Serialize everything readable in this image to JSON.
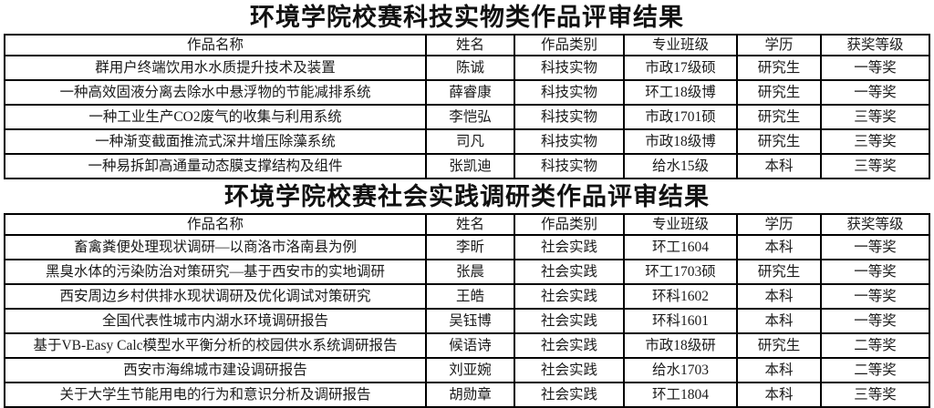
{
  "page": {
    "background_color": "#ffffff",
    "border_color": "#000000",
    "text_color": "#1a1a1a"
  },
  "tables": [
    {
      "title": "环境学院校赛科技实物类作品评审结果",
      "headers": [
        "作品名称",
        "姓名",
        "作品类别",
        "专业班级",
        "学历",
        "获奖等级"
      ],
      "rows": [
        [
          "群用户终端饮用水水质提升技术及装置",
          "陈诚",
          "科技实物",
          "市政17级硕",
          "研究生",
          "一等奖"
        ],
        [
          "一种高效固液分离去除水中悬浮物的节能减排系统",
          "薛睿康",
          "科技实物",
          "环工18级博",
          "研究生",
          "一等奖"
        ],
        [
          "一种工业生产CO2废气的收集与利用系统",
          "李恺弘",
          "科技实物",
          "市政1701硕",
          "研究生",
          "三等奖"
        ],
        [
          "一种渐变截面推流式深井增压除藻系统",
          "司凡",
          "科技实物",
          "市政18级博",
          "研究生",
          "三等奖"
        ],
        [
          "一种易拆卸高通量动态膜支撑结构及组件",
          "张凯迪",
          "科技实物",
          "给水15级",
          "本科",
          "三等奖"
        ]
      ]
    },
    {
      "title": "环境学院校赛社会实践调研类作品评审结果",
      "headers": [
        "作品名称",
        "姓名",
        "作品类别",
        "专业班级",
        "学历",
        "获奖等级"
      ],
      "rows": [
        [
          "畜禽粪便处理现状调研—以商洛市洛南县为例",
          "李昕",
          "社会实践",
          "环工1604",
          "本科",
          "一等奖"
        ],
        [
          "黑臭水体的污染防治对策研究—基于西安市的实地调研",
          "张晨",
          "社会实践",
          "环工1703硕",
          "研究生",
          "一等奖"
        ],
        [
          "西安周边乡村供排水现状调研及优化调试对策研究",
          "王皓",
          "社会实践",
          "环科1602",
          "本科",
          "一等奖"
        ],
        [
          "全国代表性城市内湖水环境调研报告",
          "吴钰博",
          "社会实践",
          "环科1601",
          "本科",
          "一等奖"
        ],
        [
          "基于VB-Easy Calc模型水平衡分析的校园供水系统调研报告",
          "候语诗",
          "社会实践",
          "市政18级研",
          "研究生",
          "二等奖"
        ],
        [
          "西安市海绵城市建设调研报告",
          "刘亚婉",
          "社会实践",
          "给水1703",
          "本科",
          "二等奖"
        ],
        [
          "关于大学生节能用电的行为和意识分析及调研报告",
          "胡勋章",
          "社会实践",
          "环工1804",
          "本科",
          "三等奖"
        ]
      ]
    }
  ]
}
